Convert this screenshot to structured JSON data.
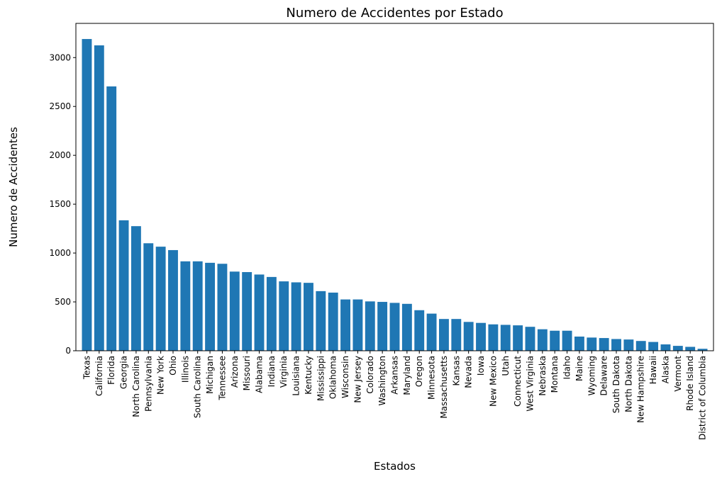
{
  "chart_data": {
    "type": "bar",
    "title": "Numero de Accidentes por Estado",
    "xlabel": "Estados",
    "ylabel": "Numero de Accidentes",
    "ylim": [
      0,
      3350
    ],
    "yticks": [
      0,
      500,
      1000,
      1500,
      2000,
      2500,
      3000
    ],
    "grid": false,
    "color": "#1f77b4",
    "categories": [
      "Texas",
      "California",
      "Florida",
      "Georgia",
      "North Carolina",
      "Pennsylvania",
      "New York",
      "Ohio",
      "Illinois",
      "South Carolina",
      "Michigan",
      "Tennessee",
      "Arizona",
      "Missouri",
      "Alabama",
      "Indiana",
      "Virginia",
      "Louisiana",
      "Kentucky",
      "Mississippi",
      "Oklahoma",
      "Wisconsin",
      "New Jersey",
      "Colorado",
      "Washington",
      "Arkansas",
      "Maryland",
      "Oregon",
      "Minnesota",
      "Massachusetts",
      "Kansas",
      "Nevada",
      "Iowa",
      "New Mexico",
      "Utah",
      "Connecticut",
      "West Virginia",
      "Nebraska",
      "Montana",
      "Idaho",
      "Maine",
      "Wyoming",
      "Delaware",
      "South Dakota",
      "North Dakota",
      "New Hampshire",
      "Hawaii",
      "Alaska",
      "Vermont",
      "Rhode Island",
      "District of Columbia"
    ],
    "values": [
      3190,
      3125,
      2705,
      1335,
      1275,
      1100,
      1065,
      1030,
      915,
      915,
      900,
      890,
      810,
      805,
      780,
      755,
      710,
      700,
      695,
      610,
      595,
      525,
      525,
      505,
      500,
      490,
      480,
      415,
      380,
      325,
      325,
      295,
      285,
      270,
      265,
      260,
      245,
      220,
      205,
      205,
      145,
      135,
      130,
      120,
      115,
      100,
      90,
      65,
      50,
      40,
      20
    ]
  }
}
